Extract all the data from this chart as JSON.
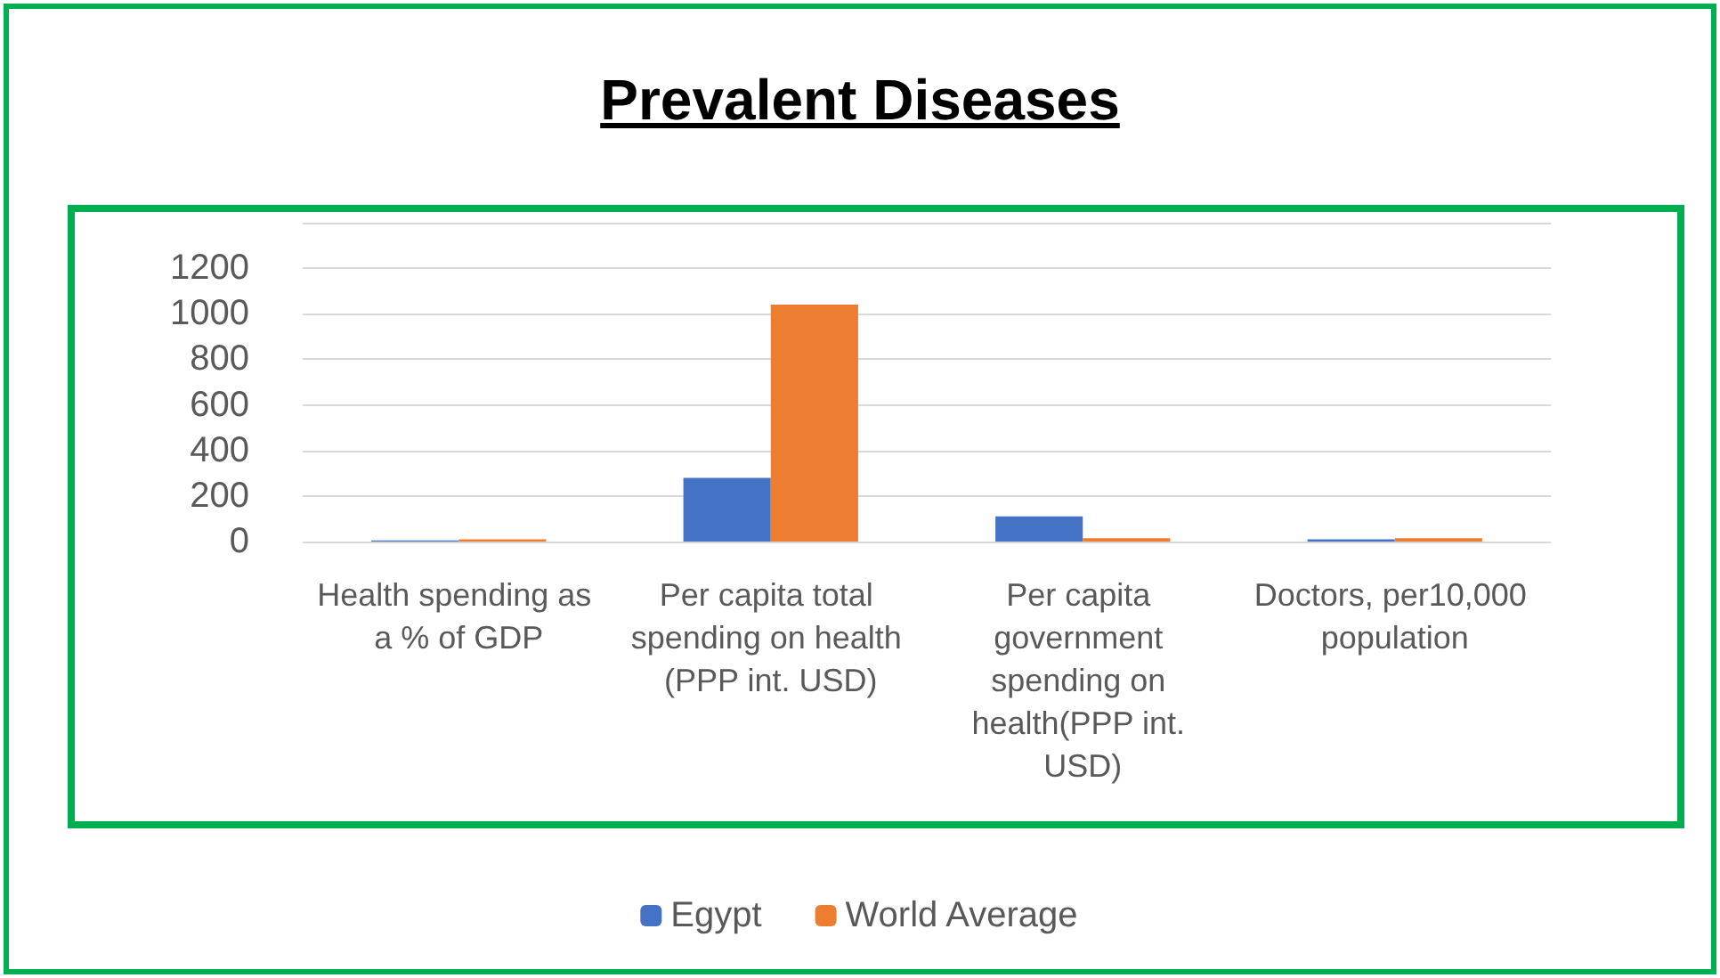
{
  "chart_data": {
    "type": "bar",
    "title": "Prevalent Diseases",
    "categories": [
      "Health spending as a % of GDP",
      "Per capita total spending on health (PPP int. USD)",
      "Per capita government spending on health(PPP int. USD)",
      "Doctors, per10,000 population"
    ],
    "series": [
      {
        "name": "Egypt",
        "color": "#4472c4",
        "values": [
          5,
          280,
          110,
          10
        ]
      },
      {
        "name": "World Average",
        "color": "#ed7d31",
        "values": [
          10,
          1040,
          15,
          15
        ]
      }
    ],
    "ylim": [
      0,
      1400
    ],
    "yticks": [
      0,
      200,
      400,
      600,
      800,
      1000,
      1200,
      {
        "value": 1400,
        "label": null
      }
    ],
    "grid": "y",
    "legend": "bottom"
  }
}
